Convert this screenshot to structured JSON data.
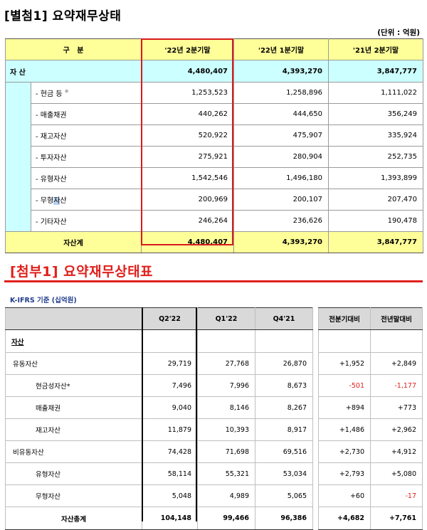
{
  "top": {
    "title": "[별첨1] 요약재무상태",
    "unit": "(단위 : 억원)",
    "headers": [
      "구   분",
      "'22년 2분기말",
      "'22년 1분기말",
      "'21년 2분기말"
    ],
    "total_assets": {
      "label": "자 산",
      "values": [
        "4,480,407",
        "4,393,270",
        "3,847,777"
      ]
    },
    "rows": [
      {
        "label": "- 현금 등",
        "note": "※",
        "values": [
          "1,253,523",
          "1,258,896",
          "1,111,022"
        ]
      },
      {
        "label": "- 매출채권",
        "values": [
          "440,262",
          "444,650",
          "356,249"
        ]
      },
      {
        "label": "- 재고자산",
        "values": [
          "520,922",
          "475,907",
          "335,924"
        ]
      },
      {
        "label": "- 투자자산",
        "values": [
          "275,921",
          "280,904",
          "252,735"
        ]
      },
      {
        "label": "- 유형자산",
        "values": [
          "1,542,546",
          "1,496,180",
          "1,393,899"
        ]
      },
      {
        "label_pre": "- 무형",
        "label_hl": "자",
        "label_post": "산",
        "values": [
          "200,969",
          "200,107",
          "207,470"
        ]
      },
      {
        "label": "- 기타자산",
        "values": [
          "246,264",
          "236,626",
          "190,478"
        ]
      }
    ],
    "sum": {
      "label": "자산계",
      "values": [
        "4,480,407",
        "4,393,270",
        "3,847,777"
      ]
    }
  },
  "bottom": {
    "title": "[첨부1] 요약재무상태표",
    "basis": "K-IFRS 기준 (십억원)",
    "headers": [
      "",
      "Q2'22",
      "Q1'22",
      "Q4'21"
    ],
    "change_headers": [
      "전분기대비",
      "전년말대비"
    ],
    "category": "자산",
    "rows": [
      {
        "label": "유동자산",
        "level": 1,
        "values": [
          "29,719",
          "27,768",
          "26,870"
        ],
        "changes": [
          "+1,952",
          "+2,849"
        ]
      },
      {
        "label": "현금성자산*",
        "level": 2,
        "values": [
          "7,496",
          "7,996",
          "8,673"
        ],
        "changes": [
          "-501",
          "-1,177"
        ]
      },
      {
        "label": "매출채권",
        "level": 2,
        "values": [
          "9,040",
          "8,146",
          "8,267"
        ],
        "changes": [
          "+894",
          "+773"
        ]
      },
      {
        "label": "재고자산",
        "level": 2,
        "values": [
          "11,879",
          "10,393",
          "8,917"
        ],
        "changes": [
          "+1,486",
          "+2,962"
        ]
      },
      {
        "label": "비유동자산",
        "level": 1,
        "values": [
          "74,428",
          "71,698",
          "69,516"
        ],
        "changes": [
          "+2,730",
          "+4,912"
        ]
      },
      {
        "label": "유형자산",
        "level": 2,
        "values": [
          "58,114",
          "55,321",
          "53,034"
        ],
        "changes": [
          "+2,793",
          "+5,080"
        ]
      },
      {
        "label": "무형자산",
        "level": 2,
        "values": [
          "5,048",
          "4,989",
          "5,065"
        ],
        "changes": [
          "+60",
          "-17"
        ]
      }
    ],
    "total": {
      "label": "자산총계",
      "values": [
        "104,148",
        "99,466",
        "96,386"
      ],
      "changes": [
        "+4,682",
        "+7,761"
      ]
    },
    "colors": {
      "accent_red": "#e0201c",
      "basis_blue": "#1f3c8c",
      "header_yellow": "#ffff99",
      "asset_cyan": "#ccffff"
    }
  }
}
